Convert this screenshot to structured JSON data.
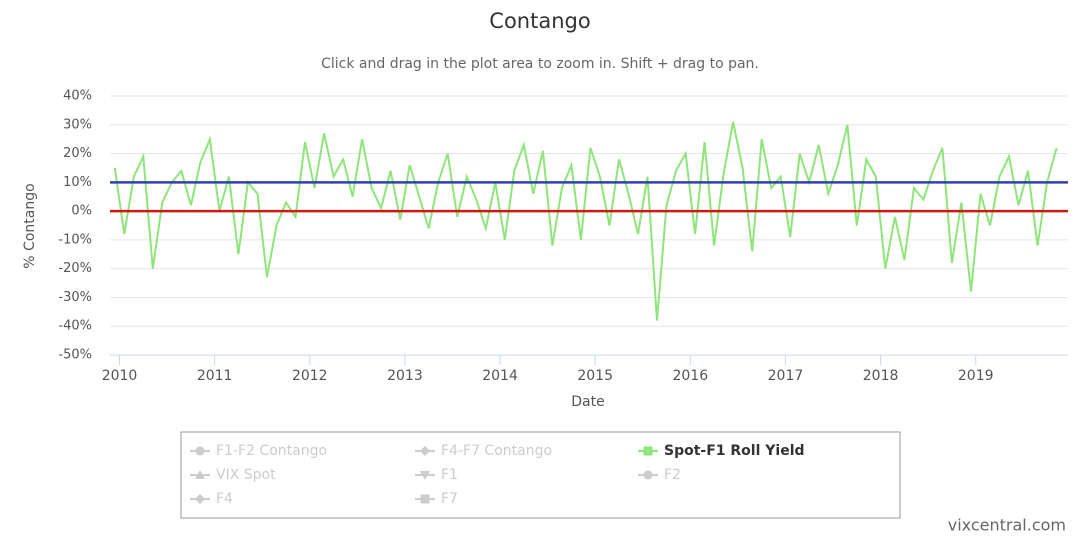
{
  "chart_data": {
    "type": "line",
    "title": "Contango",
    "subtitle": "Click and drag in the plot area to zoom in. Shift + drag to pan.",
    "x_label": "Date",
    "y_label": "% Contango",
    "credit": "vixcentral.com",
    "xlim": [
      2009.9,
      2019.97
    ],
    "xticks": [
      2010,
      2011,
      2012,
      2013,
      2014,
      2015,
      2016,
      2017,
      2018,
      2019
    ],
    "ylim": [
      -50,
      40
    ],
    "yticks": [
      {
        "value": -50,
        "label": "-50%"
      },
      {
        "value": -40,
        "label": "-40%"
      },
      {
        "value": -30,
        "label": "-30%"
      },
      {
        "value": -20,
        "label": "-20%"
      },
      {
        "value": -10,
        "label": "-10%"
      },
      {
        "value": 0,
        "label": "0%"
      },
      {
        "value": 10,
        "label": "10%"
      },
      {
        "value": 20,
        "label": "20%"
      },
      {
        "value": 30,
        "label": "30%"
      },
      {
        "value": 40,
        "label": "40%"
      }
    ],
    "grid": true,
    "plot_lines": [
      {
        "value": 10,
        "color": "#3340a8"
      },
      {
        "value": 0,
        "color": "#d01818"
      }
    ],
    "x": [
      2009.95,
      2010.05,
      2010.15,
      2010.25,
      2010.35,
      2010.45,
      2010.55,
      2010.65,
      2010.75,
      2010.85,
      2010.95,
      2011.05,
      2011.15,
      2011.25,
      2011.35,
      2011.45,
      2011.55,
      2011.65,
      2011.75,
      2011.85,
      2011.95,
      2012.05,
      2012.15,
      2012.25,
      2012.35,
      2012.45,
      2012.55,
      2012.65,
      2012.75,
      2012.85,
      2012.95,
      2013.05,
      2013.15,
      2013.25,
      2013.35,
      2013.45,
      2013.55,
      2013.65,
      2013.75,
      2013.85,
      2013.95,
      2014.05,
      2014.15,
      2014.25,
      2014.35,
      2014.45,
      2014.55,
      2014.65,
      2014.75,
      2014.85,
      2014.95,
      2015.05,
      2015.15,
      2015.25,
      2015.35,
      2015.45,
      2015.55,
      2015.65,
      2015.75,
      2015.85,
      2015.95,
      2016.05,
      2016.15,
      2016.25,
      2016.35,
      2016.45,
      2016.55,
      2016.65,
      2016.75,
      2016.85,
      2016.95,
      2017.05,
      2017.15,
      2017.25,
      2017.35,
      2017.45,
      2017.55,
      2017.65,
      2017.75,
      2017.85,
      2017.95,
      2018.05,
      2018.15,
      2018.25,
      2018.35,
      2018.45,
      2018.55,
      2018.65,
      2018.75,
      2018.85,
      2018.95,
      2019.05,
      2019.15,
      2019.25,
      2019.35,
      2019.45,
      2019.55,
      2019.65,
      2019.75,
      2019.85
    ],
    "series": [
      {
        "name": "F1-F2 Contango",
        "symbol": "circle",
        "visible": false
      },
      {
        "name": "F4-F7 Contango",
        "symbol": "diamond",
        "visible": false
      },
      {
        "name": "Spot-F1 Roll Yield",
        "symbol": "square",
        "visible": true,
        "color": "#8ee67a",
        "values": [
          15,
          -8,
          12,
          19,
          -20,
          3,
          10,
          14,
          2,
          17,
          25,
          0,
          12,
          -15,
          10,
          6,
          -23,
          -5,
          3,
          -2,
          24,
          8,
          27,
          12,
          18,
          5,
          25,
          8,
          1,
          14,
          -3,
          16,
          5,
          -6,
          10,
          20,
          -2,
          12,
          4,
          -6,
          10,
          -10,
          14,
          23,
          6,
          21,
          -12,
          8,
          16,
          -10,
          22,
          12,
          -5,
          18,
          6,
          -8,
          12,
          -38,
          2,
          14,
          20,
          -8,
          24,
          -12,
          13,
          31,
          15,
          -14,
          25,
          8,
          12,
          -9,
          20,
          10,
          23,
          6,
          16,
          30,
          -5,
          18,
          12,
          -20,
          -2,
          -17,
          8,
          4,
          14,
          22,
          -18,
          3,
          -28,
          6,
          -5,
          12,
          19,
          2,
          14,
          -12,
          10,
          22
        ]
      },
      {
        "name": "VIX Spot",
        "symbol": "triangle",
        "visible": false
      },
      {
        "name": "F1",
        "symbol": "triangle-down",
        "visible": false
      },
      {
        "name": "F2",
        "symbol": "circle",
        "visible": false
      },
      {
        "name": "F4",
        "symbol": "diamond",
        "visible": false
      },
      {
        "name": "F7",
        "symbol": "square",
        "visible": false
      }
    ]
  }
}
